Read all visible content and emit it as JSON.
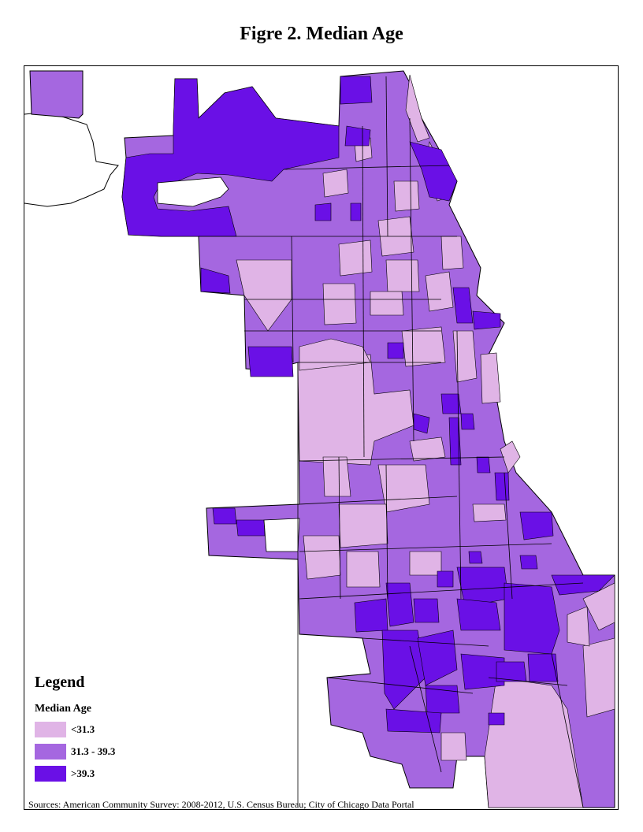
{
  "title": "Figre 2. Median Age",
  "legend": {
    "heading": "Legend",
    "subtitle": "Median Age",
    "classes": [
      {
        "label": "<31.3",
        "color": "#e0b4e6"
      },
      {
        "label": "31.3 - 39.3",
        "color": "#a567e0"
      },
      {
        "label": ">39.3",
        "color": "#6a10e6"
      }
    ]
  },
  "source": "Sources: American Community Survey: 2008-2012, U.S. Census Bureau; City of Chicago Data Portal"
}
